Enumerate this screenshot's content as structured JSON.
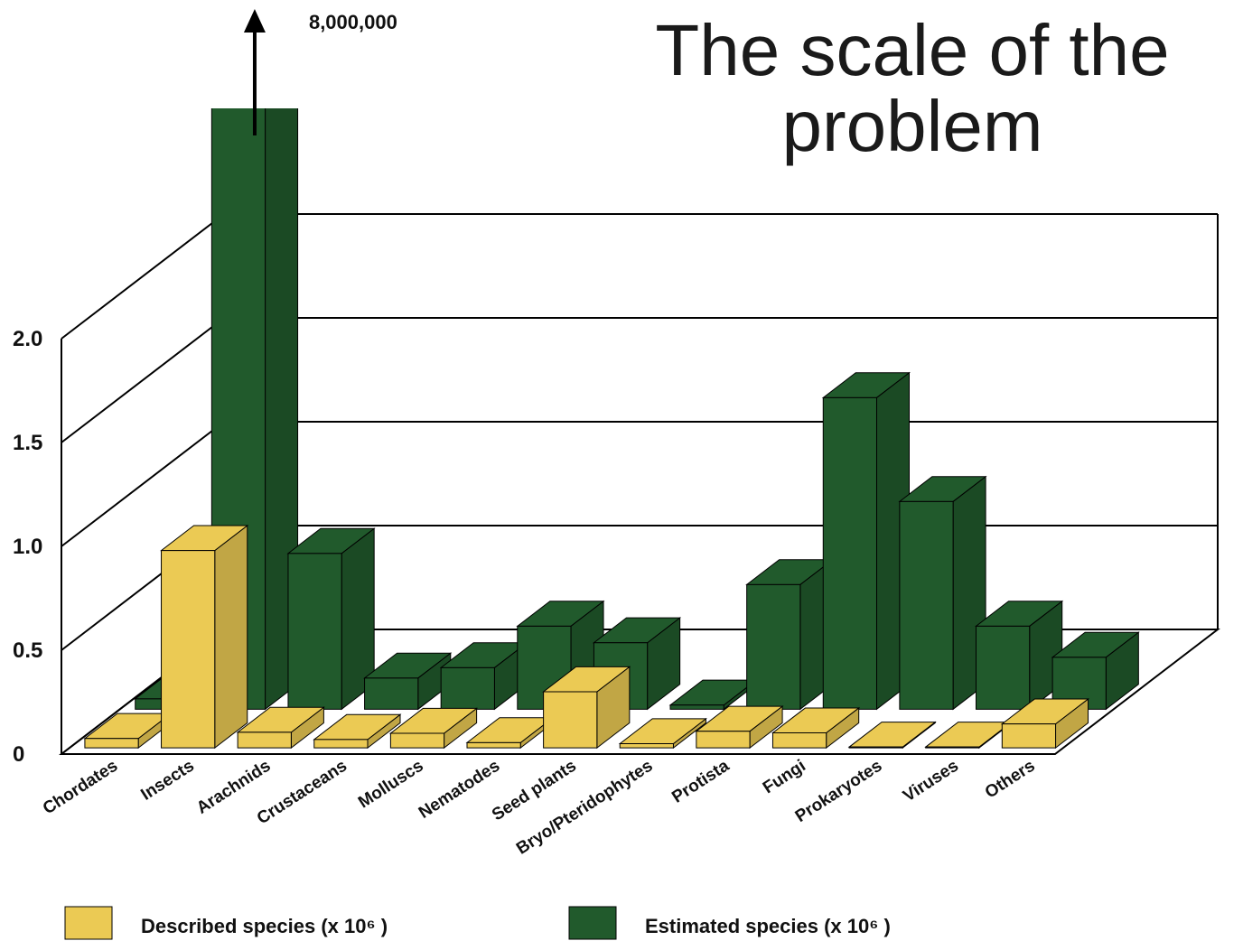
{
  "chart_data": {
    "type": "bar3d",
    "title": "The scale of the problem",
    "annotation": "8,000,000",
    "categories": [
      "Chordates",
      "Insects",
      "Arachnids",
      "Crustaceans",
      "Molluscs",
      "Nematodes",
      "Seed plants",
      "Bryo/Pteridophytes",
      "Protista",
      "Fungi",
      "Prokaryotes",
      "Viruses",
      "Others"
    ],
    "series": [
      {
        "name": "Described species (x 10⁶ )",
        "color": "#ebca54",
        "values": [
          0.045,
          0.95,
          0.075,
          0.04,
          0.07,
          0.025,
          0.27,
          0.02,
          0.08,
          0.072,
          0.004,
          0.004,
          0.115
        ]
      },
      {
        "name": "Estimated species (x 10⁶ )",
        "color": "#215a2c",
        "values": [
          0.05,
          8,
          0.75,
          0.15,
          0.2,
          0.4,
          0.32,
          0.02,
          0.6,
          1.5,
          1.0,
          0.4,
          0.25
        ]
      }
    ],
    "ylim": [
      0,
      2
    ],
    "yticks": [
      0,
      0.5,
      {
        "value": 1,
        "label": "1.0"
      },
      1.5,
      {
        "value": 2,
        "label": "2.0"
      }
    ],
    "grid": true
  }
}
